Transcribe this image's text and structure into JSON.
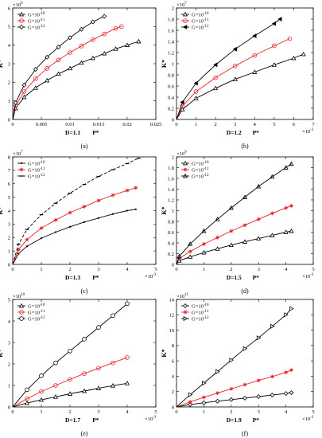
{
  "figure": {
    "panels": [
      {
        "panel_label": "(a)",
        "ylabel": "K*",
        "xlabel": "P*",
        "param_label": "D=1.1",
        "x_multiplier": "",
        "y_multiplier": "×10^6",
        "x_ticks": [
          "0",
          "0.005",
          "0.01",
          "0.015",
          "0.02",
          "0.025"
        ],
        "x_range": [
          0,
          0.025
        ],
        "y_ticks": [
          "0",
          "1",
          "2",
          "3",
          "4",
          "5",
          "6"
        ],
        "y_range": [
          0,
          6
        ],
        "legend_position": "top-left"
      },
      {
        "panel_label": "(b)",
        "ylabel": "K*",
        "xlabel": "P*",
        "param_label": "D=1.2",
        "x_multiplier": "×10^-3",
        "y_multiplier": "×10^7",
        "x_ticks": [
          "0",
          "1",
          "2",
          "3",
          "4",
          "5",
          "6",
          "7"
        ],
        "x_range": [
          0,
          7
        ],
        "y_ticks": [
          "0",
          "0.2",
          "0.4",
          "0.6",
          "0.8",
          "1",
          "1.2",
          "1.4",
          "1.6",
          "1.8",
          "2"
        ],
        "y_range": [
          0,
          2
        ],
        "legend_position": "top-left"
      },
      {
        "panel_label": "(c)",
        "ylabel": "K*",
        "xlabel": "P*",
        "param_label": "D=1.3",
        "x_multiplier": "×10^-3",
        "y_multiplier": "×10^7",
        "x_ticks": [
          "0",
          "1",
          "2",
          "3",
          "4",
          "5"
        ],
        "x_range": [
          0,
          5
        ],
        "y_ticks": [
          "0",
          "1",
          "2",
          "3",
          "4",
          "5",
          "6",
          "7",
          "8"
        ],
        "y_range": [
          0,
          8
        ],
        "legend_position": "top-left"
      },
      {
        "panel_label": "(d)",
        "ylabel": "K*",
        "xlabel": "P*",
        "param_label": "D=1.5",
        "x_multiplier": "×10^-3",
        "y_multiplier": "×10^9",
        "x_ticks": [
          "0",
          "1",
          "2",
          "3",
          "4",
          "5"
        ],
        "x_range": [
          0,
          5
        ],
        "y_ticks": [
          "0",
          "0.2",
          "0.4",
          "0.6",
          "0.8",
          "1",
          "1.2",
          "1.4",
          "1.6",
          "1.8",
          "2"
        ],
        "y_range": [
          0,
          2
        ],
        "legend_position": "top-left"
      },
      {
        "panel_label": "(e)",
        "ylabel": "K*",
        "xlabel": "P*",
        "param_label": "D=1.7",
        "x_multiplier": "×10^-3",
        "y_multiplier": "×10^10",
        "x_ticks": [
          "0",
          "1",
          "2",
          "3",
          "4",
          "5"
        ],
        "x_range": [
          0,
          5
        ],
        "y_ticks": [
          "0",
          "1",
          "2",
          "3",
          "4",
          "5"
        ],
        "y_range": [
          0,
          5
        ],
        "legend_position": "top-left"
      },
      {
        "panel_label": "(f)",
        "ylabel": "K*",
        "xlabel": "P*",
        "param_label": "D=1.9",
        "x_multiplier": "×10^-3",
        "y_multiplier": "×10^11",
        "x_ticks": [
          "0",
          "1",
          "2",
          "3",
          "4",
          "5"
        ],
        "x_range": [
          0,
          5
        ],
        "y_ticks": [
          "0",
          "2",
          "4",
          "6",
          "8",
          "10",
          "12",
          "14"
        ],
        "y_range": [
          0,
          14
        ],
        "legend_position": "top-left"
      }
    ]
  },
  "chart_data": [
    {
      "type": "line",
      "title": "",
      "xlabel": "P*",
      "ylabel": "K*",
      "xlim": [
        0,
        0.025
      ],
      "ylim": [
        0,
        6
      ],
      "grid": false,
      "legend": "top-left",
      "series": [
        {
          "name": "G=10^-10",
          "marker": "triangle",
          "color": "#000000",
          "x": [
            0,
            0.0005,
            0.002,
            0.004,
            0.006,
            0.008,
            0.01,
            0.012,
            0.014,
            0.016,
            0.018,
            0.02,
            0.022
          ],
          "y": [
            0,
            0.6,
            1.2,
            1.7,
            2.1,
            2.45,
            2.75,
            3.05,
            3.3,
            3.55,
            3.8,
            4.0,
            4.2
          ]
        },
        {
          "name": "G=10^-11",
          "marker": "circle",
          "color": "#e8242a",
          "x": [
            0,
            0.0005,
            0.002,
            0.004,
            0.006,
            0.008,
            0.01,
            0.012,
            0.014,
            0.016,
            0.018,
            0.019
          ],
          "y": [
            0,
            0.75,
            1.5,
            2.2,
            2.75,
            3.2,
            3.6,
            3.95,
            4.3,
            4.6,
            4.9,
            5.0
          ]
        },
        {
          "name": "G=10^-12",
          "marker": "diamond",
          "color": "#000000",
          "x": [
            0,
            0.0005,
            0.002,
            0.004,
            0.006,
            0.008,
            0.01,
            0.012,
            0.014,
            0.016
          ],
          "y": [
            0,
            0.9,
            1.85,
            2.7,
            3.35,
            3.9,
            4.4,
            4.85,
            5.25,
            5.55
          ]
        }
      ]
    },
    {
      "type": "line",
      "title": "",
      "xlabel": "P*",
      "ylabel": "K*",
      "xlim": [
        0,
        7
      ],
      "ylim": [
        0,
        2
      ],
      "grid": false,
      "legend": "top-left",
      "series": [
        {
          "name": "G=10^-10",
          "marker": "triangle",
          "color": "#000000",
          "x": [
            0,
            0.3,
            1,
            2,
            3,
            4,
            5,
            6,
            6.5
          ],
          "y": [
            0,
            0.18,
            0.38,
            0.56,
            0.72,
            0.85,
            0.98,
            1.1,
            1.17
          ]
        },
        {
          "name": "G=10^-11",
          "marker": "circle",
          "color": "#e8242a",
          "x": [
            0,
            0.3,
            1,
            2,
            3,
            4,
            5,
            5.8
          ],
          "y": [
            0,
            0.24,
            0.5,
            0.75,
            0.96,
            1.15,
            1.32,
            1.45
          ]
        },
        {
          "name": "G=10^-12",
          "marker": "triangle-left",
          "color": "#000000",
          "x": [
            0,
            0.3,
            1,
            2,
            3,
            4,
            5,
            5.3
          ],
          "y": [
            0,
            0.31,
            0.65,
            0.98,
            1.26,
            1.5,
            1.72,
            1.8
          ]
        }
      ]
    },
    {
      "type": "line",
      "title": "",
      "xlabel": "P*",
      "ylabel": "K*",
      "xlim": [
        0,
        5
      ],
      "ylim": [
        0,
        8
      ],
      "grid": false,
      "legend": "top-left",
      "series": [
        {
          "name": "G=10^-10",
          "marker": "dot",
          "color": "#000000",
          "x": [
            0,
            0.2,
            0.5,
            1,
            1.5,
            2,
            2.5,
            3,
            3.5,
            4,
            4.3
          ],
          "y": [
            0,
            0.8,
            1.35,
            1.95,
            2.4,
            2.8,
            3.15,
            3.45,
            3.75,
            4.0,
            4.1
          ]
        },
        {
          "name": "G=10^-11",
          "marker": "star",
          "color": "#e8242a",
          "x": [
            0,
            0.2,
            0.5,
            1,
            1.5,
            2,
            2.5,
            3,
            3.5,
            4,
            4.3
          ],
          "y": [
            0,
            1.1,
            1.85,
            2.7,
            3.3,
            3.85,
            4.3,
            4.75,
            5.15,
            5.5,
            5.7
          ]
        },
        {
          "name": "G=10^-12",
          "marker": "dash",
          "color": "#000000",
          "x": [
            0,
            0.2,
            0.5,
            1,
            1.5,
            2,
            2.5,
            3,
            3.5,
            4,
            4.4
          ],
          "y": [
            0,
            1.5,
            2.6,
            3.7,
            4.55,
            5.3,
            5.95,
            6.55,
            7.05,
            7.5,
            7.9
          ]
        }
      ]
    },
    {
      "type": "line",
      "title": "",
      "xlabel": "P*",
      "ylabel": "K*",
      "xlim": [
        0,
        5
      ],
      "ylim": [
        0,
        2
      ],
      "grid": false,
      "legend": "top-left",
      "series": [
        {
          "name": "G=10^-10",
          "marker": "triangle",
          "color": "#000000",
          "x": [
            0,
            0.1,
            0.5,
            1,
            1.5,
            2,
            2.5,
            3,
            3.5,
            4,
            4.2
          ],
          "y": [
            0,
            0.07,
            0.14,
            0.22,
            0.29,
            0.36,
            0.42,
            0.48,
            0.54,
            0.6,
            0.62
          ]
        },
        {
          "name": "G=10^-11",
          "marker": "star",
          "color": "#e8242a",
          "x": [
            0,
            0.1,
            0.5,
            1,
            1.5,
            2,
            2.5,
            3,
            3.5,
            4,
            4.2
          ],
          "y": [
            0,
            0.11,
            0.24,
            0.38,
            0.5,
            0.62,
            0.73,
            0.84,
            0.95,
            1.05,
            1.09
          ]
        },
        {
          "name": "G=10^-12",
          "marker": "triangle-up",
          "color": "#000000",
          "x": [
            0,
            0.1,
            0.5,
            1,
            1.5,
            2,
            2.5,
            3,
            3.5,
            4,
            4.2
          ],
          "y": [
            0,
            0.15,
            0.38,
            0.62,
            0.84,
            1.05,
            1.25,
            1.45,
            1.63,
            1.8,
            1.87
          ]
        }
      ]
    },
    {
      "type": "line",
      "title": "",
      "xlabel": "P*",
      "ylabel": "K*",
      "xlim": [
        0,
        5
      ],
      "ylim": [
        0,
        5
      ],
      "grid": false,
      "legend": "top-left",
      "series": [
        {
          "name": "G=10^-10",
          "marker": "triangle",
          "color": "#000000",
          "x": [
            0,
            0.5,
            1,
            1.5,
            2,
            2.5,
            3,
            3.5,
            4
          ],
          "y": [
            0,
            0.18,
            0.33,
            0.47,
            0.61,
            0.74,
            0.87,
            0.99,
            1.1
          ]
        },
        {
          "name": "G=10^-11",
          "marker": "circle",
          "color": "#e8242a",
          "x": [
            0,
            0.5,
            1,
            1.5,
            2,
            2.5,
            3,
            3.5,
            4
          ],
          "y": [
            0,
            0.38,
            0.72,
            1.0,
            1.28,
            1.55,
            1.8,
            2.05,
            2.3
          ]
        },
        {
          "name": "G=10^-12",
          "marker": "circle-open",
          "color": "#000000",
          "x": [
            0,
            0.5,
            1,
            1.5,
            2,
            2.5,
            3,
            3.5,
            4
          ],
          "y": [
            0,
            0.8,
            1.45,
            2.05,
            2.6,
            3.15,
            3.7,
            4.25,
            4.8
          ]
        }
      ]
    },
    {
      "type": "line",
      "title": "",
      "xlabel": "P*",
      "ylabel": "K*",
      "xlim": [
        0,
        5
      ],
      "ylim": [
        0,
        14
      ],
      "grid": false,
      "legend": "top-left",
      "series": [
        {
          "name": "G=10^-10",
          "marker": "diamond",
          "color": "#000000",
          "x": [
            0,
            0.5,
            1,
            1.5,
            2,
            2.5,
            3,
            3.5,
            4,
            4.2
          ],
          "y": [
            0,
            0.3,
            0.55,
            0.75,
            0.95,
            1.15,
            1.35,
            1.55,
            1.75,
            1.85
          ]
        },
        {
          "name": "G=10^-11",
          "marker": "star",
          "color": "#e8242a",
          "x": [
            0,
            0.5,
            1,
            1.5,
            2,
            2.5,
            3,
            3.5,
            4,
            4.2
          ],
          "y": [
            0,
            0.65,
            1.25,
            1.8,
            2.35,
            2.9,
            3.45,
            3.95,
            4.5,
            4.8
          ]
        },
        {
          "name": "G=10^-12",
          "marker": "triangle-right",
          "color": "#000000",
          "x": [
            0,
            0.5,
            1,
            1.5,
            2,
            2.5,
            3,
            3.5,
            4,
            4.2
          ],
          "y": [
            0,
            1.6,
            3.1,
            4.6,
            6.1,
            7.6,
            9.0,
            10.5,
            12.0,
            12.8
          ]
        }
      ]
    }
  ]
}
